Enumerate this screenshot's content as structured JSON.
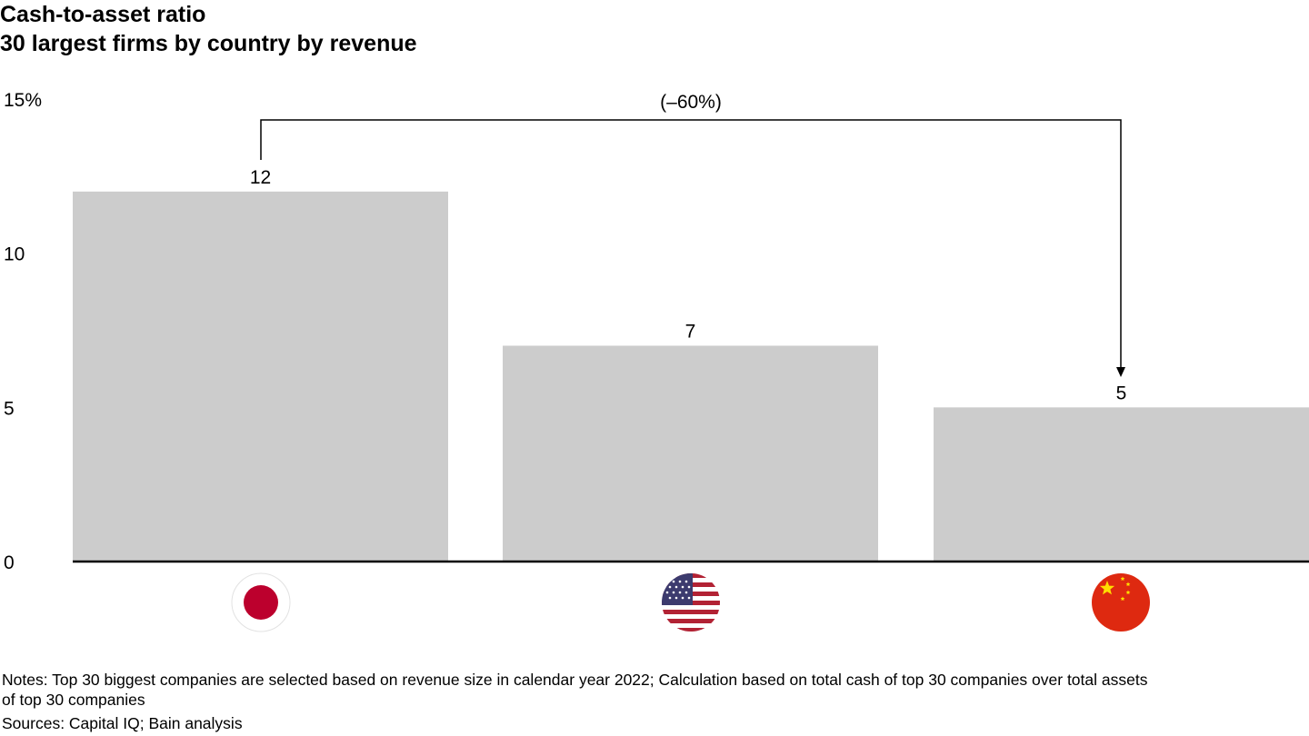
{
  "title": "Cash-to-asset ratio",
  "subtitle": "30 largest firms by country by revenue",
  "chart_data": {
    "type": "bar",
    "categories": [
      "Japan",
      "United States",
      "China"
    ],
    "category_icons": [
      "japan-flag-icon",
      "us-flag-icon",
      "china-flag-icon"
    ],
    "values": [
      12,
      7,
      5
    ],
    "value_labels": [
      "12",
      "7",
      "5"
    ],
    "ylim": [
      0,
      15
    ],
    "yticks": [
      0,
      5,
      10,
      15
    ],
    "ytick_labels": [
      "0",
      "5",
      "10",
      "15%"
    ],
    "grid": false,
    "bar_color": "#cccccc",
    "annotation": {
      "text": "(–60%)",
      "from": "Japan",
      "to": "China"
    }
  },
  "notes_line1": "Notes: Top 30 biggest companies are selected based on revenue size in calendar year 2022; Calculation based on total cash of top 30 companies over total assets",
  "notes_line2": "of top 30 companies",
  "sources": "Sources: Capital IQ; Bain analysis"
}
